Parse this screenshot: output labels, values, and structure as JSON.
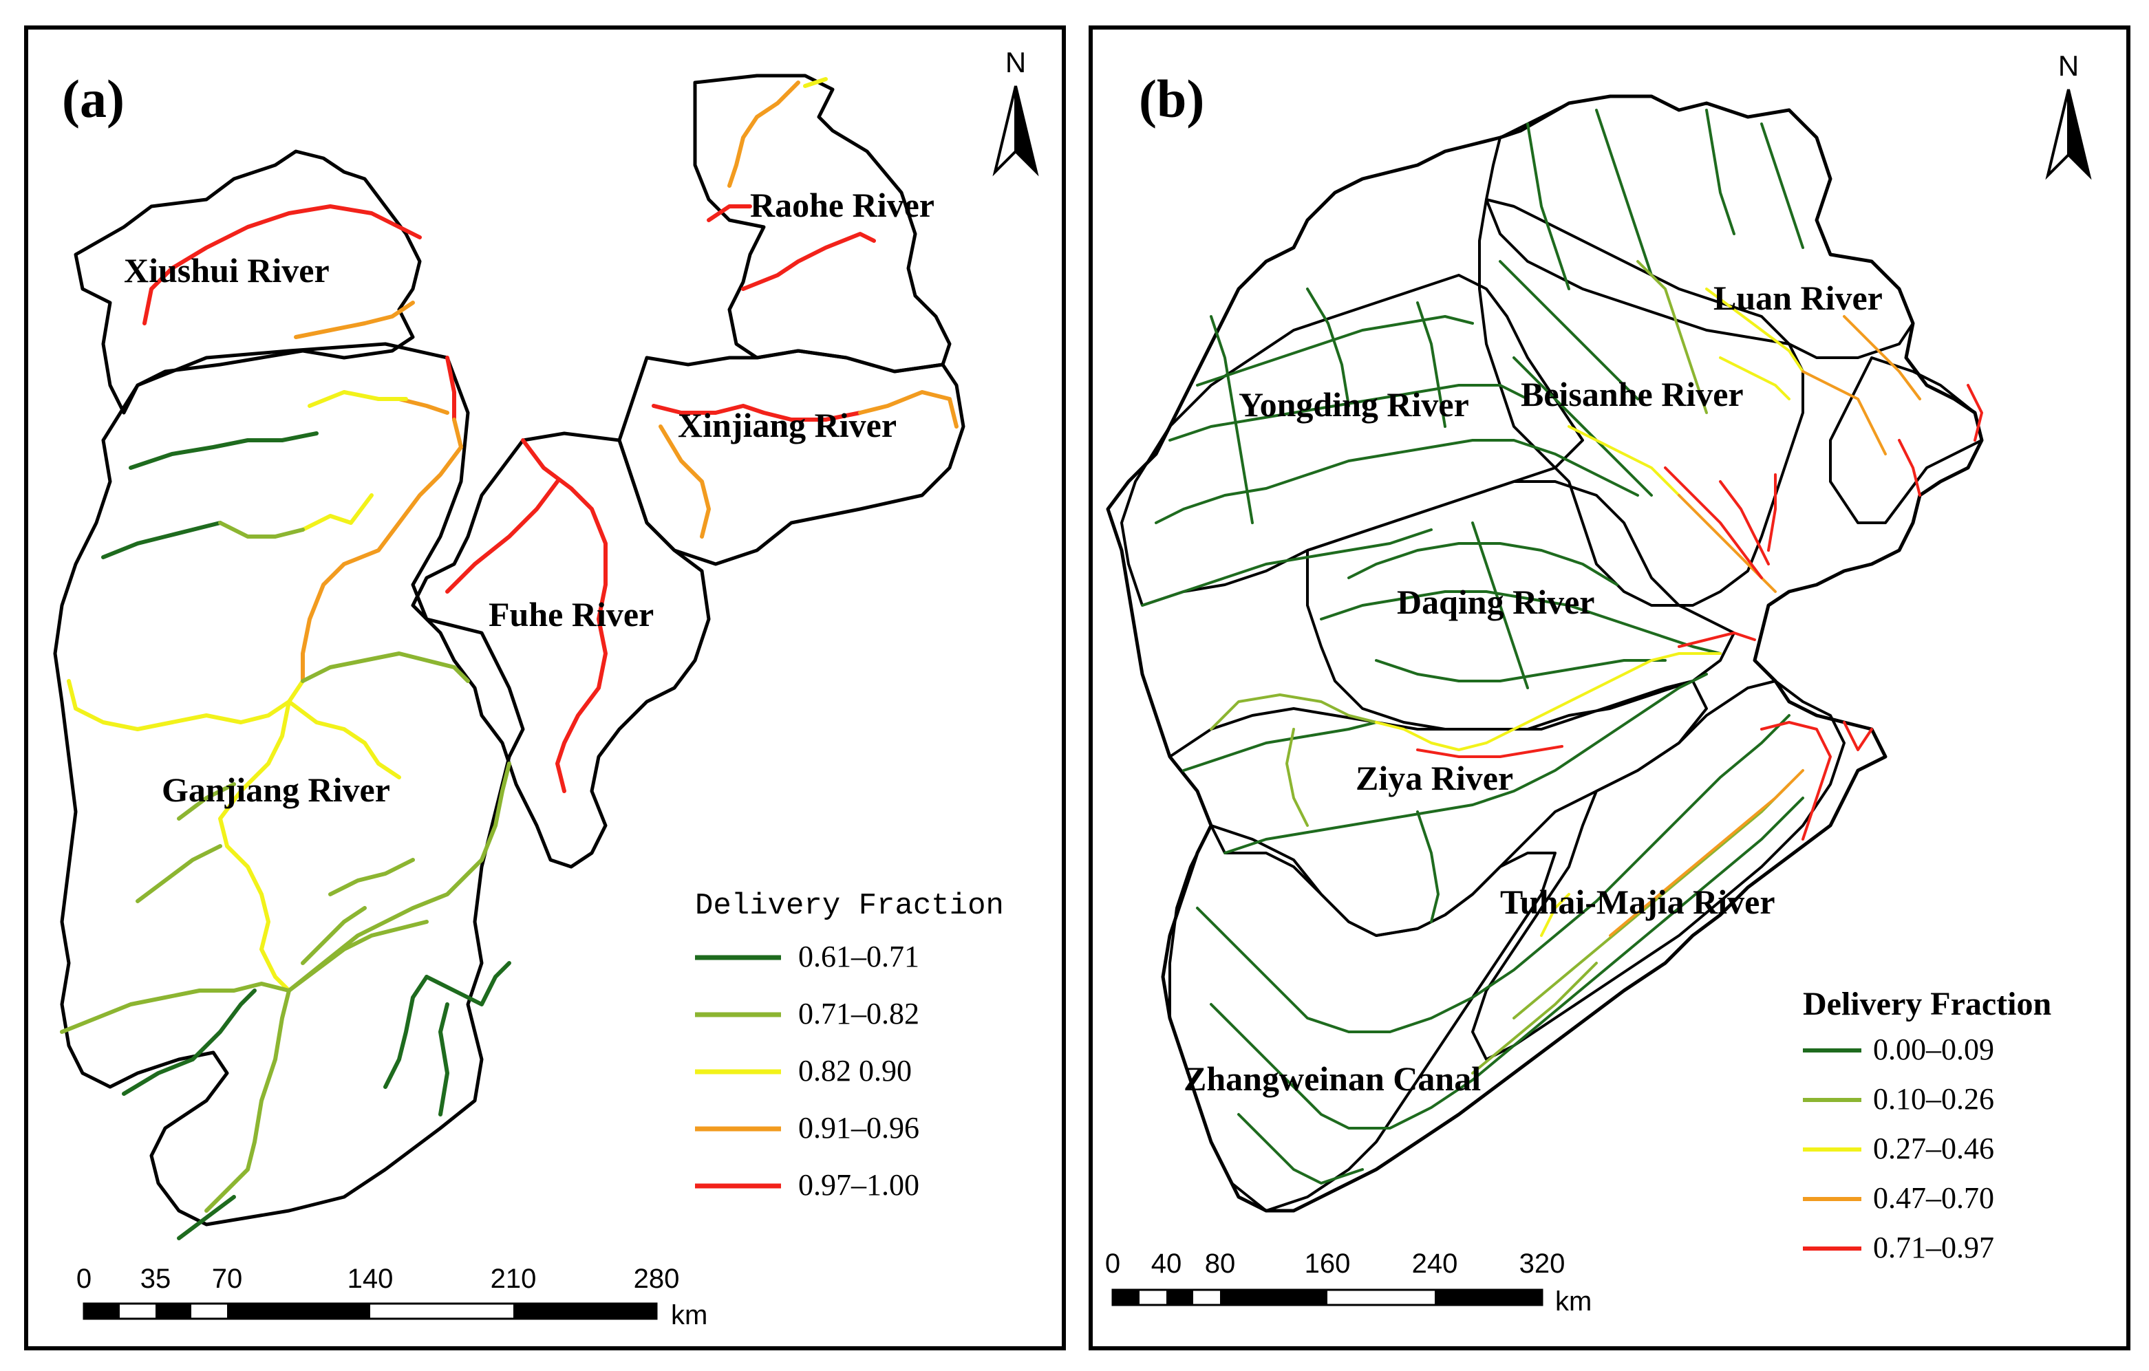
{
  "panels": {
    "a": {
      "label": "(a)",
      "rivers": [
        "Xiushui River",
        "Raohe River",
        "Xinjiang River",
        "Fuhe River",
        "Ganjiang River"
      ],
      "legend": {
        "title": "Delivery Fraction",
        "classes": [
          {
            "label": "0.61–0.71",
            "color": "#1e6b1e"
          },
          {
            "label": "0.71–0.82",
            "color": "#8cb531"
          },
          {
            "label": "0.82  0.90",
            "color": "#f2f21a"
          },
          {
            "label": "0.91–0.96",
            "color": "#f29b1f"
          },
          {
            "label": "0.97–1.00",
            "color": "#f2221a"
          }
        ]
      },
      "scale": {
        "ticks": [
          "0",
          "35",
          "70",
          "140",
          "210",
          "280"
        ],
        "unit": "km"
      },
      "north": "N"
    },
    "b": {
      "label": "(b)",
      "rivers": [
        "Luan River",
        "Yongding River",
        "Beisanhe River",
        "Daqing River",
        "Ziya River",
        "Tuhai-Majia River",
        "Zhangweinan Canal"
      ],
      "legend": {
        "title": "Delivery Fraction",
        "classes": [
          {
            "label": "0.00–0.09",
            "color": "#1e6b1e"
          },
          {
            "label": "0.10–0.26",
            "color": "#8cb531"
          },
          {
            "label": "0.27–0.46",
            "color": "#f2f21a"
          },
          {
            "label": "0.47–0.70",
            "color": "#f29b1f"
          },
          {
            "label": "0.71–0.97",
            "color": "#f2221a"
          }
        ]
      },
      "scale": {
        "ticks": [
          "0",
          "40",
          "80",
          "160",
          "240",
          "320"
        ],
        "unit": "km"
      },
      "north": "N"
    }
  }
}
